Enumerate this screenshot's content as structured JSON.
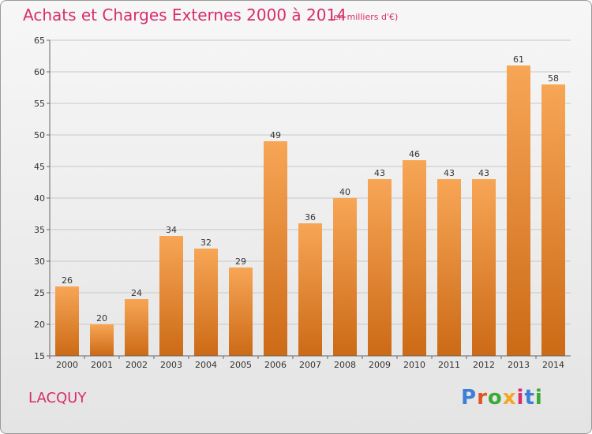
{
  "header": {
    "title": "Achats et Charges Externes 2000 à 2014",
    "subtitle": "(en milliers d'€)"
  },
  "footer": {
    "commune": "LACQUY",
    "logo": [
      "P",
      "r",
      "o",
      "x",
      "i",
      "t",
      "i"
    ],
    "logo_colors": [
      "#3d7fd6",
      "#e2531f",
      "#3aaa35",
      "#f5a623",
      "#d72c6d",
      "#3d7fd6",
      "#3aaa35"
    ]
  },
  "colors": {
    "title": "#d72c6d",
    "bar_light": "#f7a656",
    "bar_dark": "#cc6a16",
    "grid": "#c8c8c8"
  },
  "chart_data": {
    "type": "bar",
    "categories": [
      "2000",
      "2001",
      "2002",
      "2003",
      "2004",
      "2005",
      "2006",
      "2007",
      "2008",
      "2009",
      "2010",
      "2011",
      "2012",
      "2013",
      "2014"
    ],
    "values": [
      26,
      20,
      24,
      34,
      32,
      29,
      49,
      36,
      40,
      43,
      46,
      43,
      43,
      61,
      58
    ],
    "ylim": [
      15,
      65
    ],
    "yticks": [
      15,
      20,
      25,
      30,
      35,
      40,
      45,
      50,
      55,
      60,
      65
    ],
    "grid": true
  }
}
